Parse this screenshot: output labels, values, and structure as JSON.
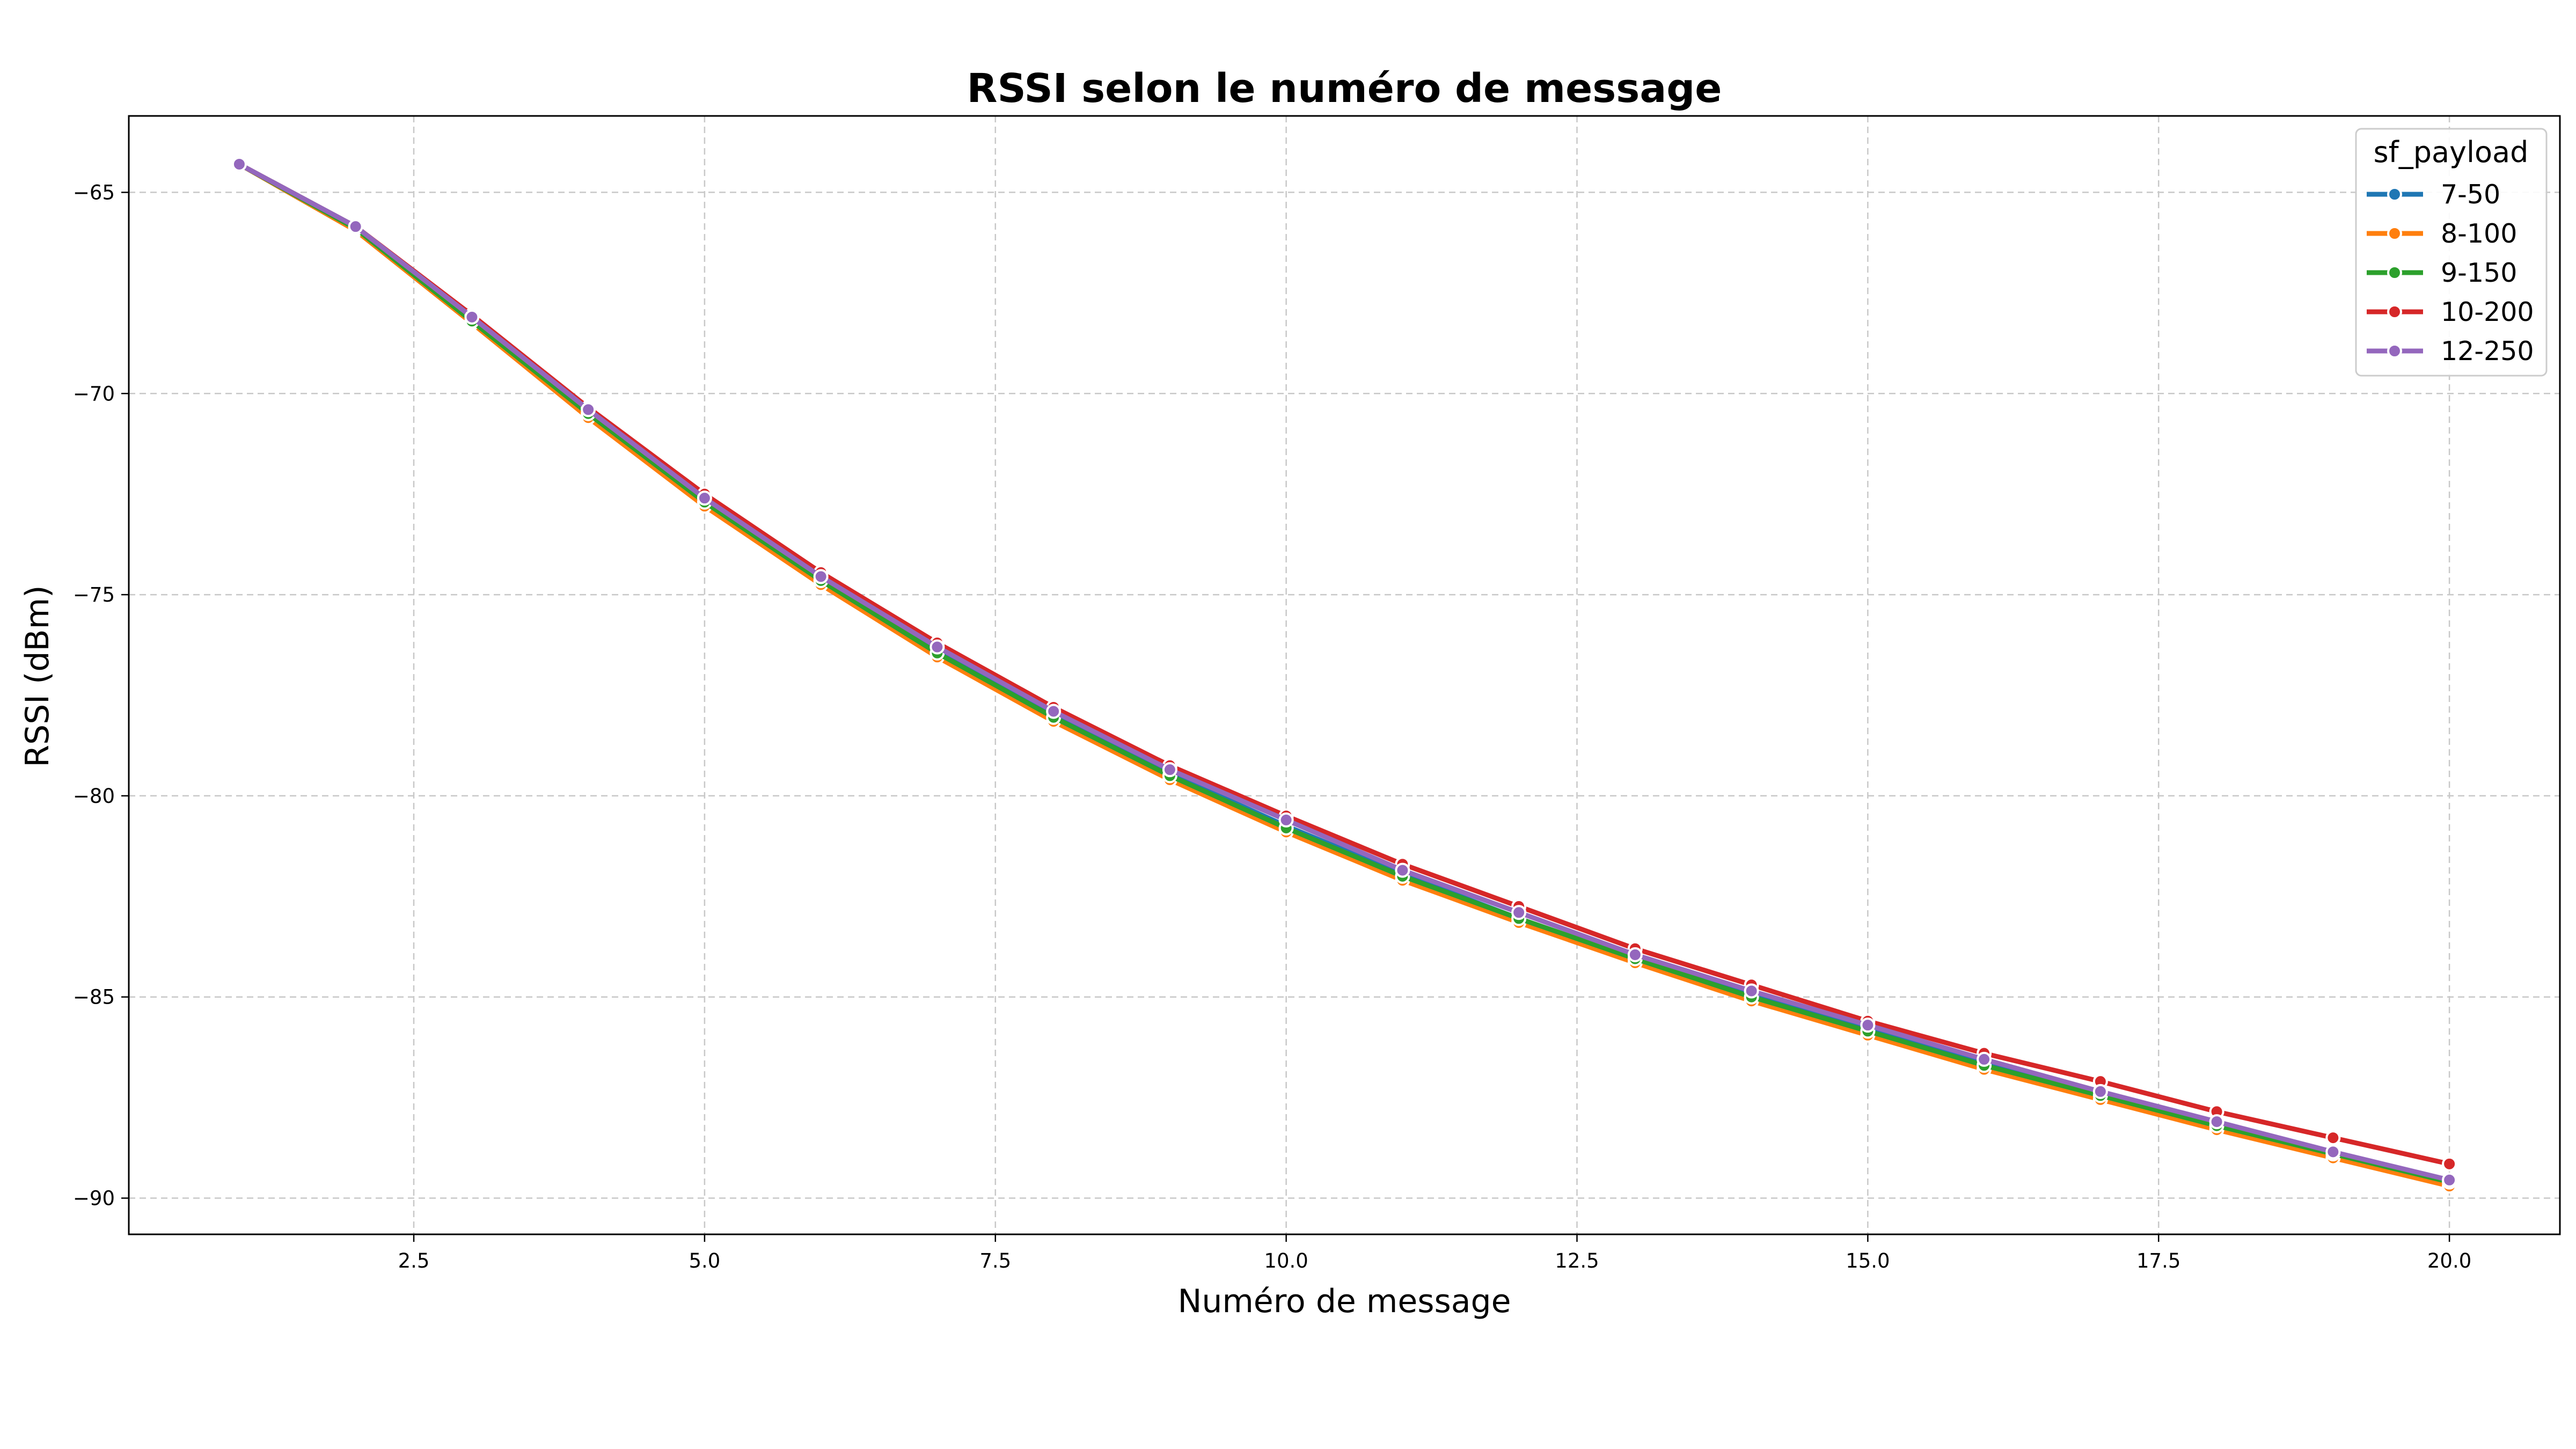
{
  "chart_data": {
    "type": "line",
    "title": "RSSI selon le numéro de message",
    "xlabel": "Numéro de message",
    "ylabel": "RSSI (dBm)",
    "xlim": [
      0.05,
      20.95
    ],
    "ylim": [
      -90.9,
      -63.1
    ],
    "xticks": [
      2.5,
      5.0,
      7.5,
      10.0,
      12.5,
      15.0,
      17.5,
      20.0
    ],
    "xtick_labels": [
      "2.5",
      "5.0",
      "7.5",
      "10.0",
      "12.5",
      "15.0",
      "17.5",
      "20.0"
    ],
    "yticks": [
      -65,
      -70,
      -75,
      -80,
      -85,
      -90
    ],
    "ytick_labels": [
      "−65",
      "−70",
      "−75",
      "−80",
      "−85",
      "−90"
    ],
    "grid": true,
    "legend_title": "sf_payload",
    "legend_position": "top-right",
    "x": [
      1,
      2,
      3,
      4,
      5,
      6,
      7,
      8,
      9,
      10,
      11,
      12,
      13,
      14,
      15,
      16,
      17,
      18,
      19,
      20
    ],
    "series": [
      {
        "name": "7-50",
        "color": "#1f77b4",
        "values": [
          -64.3,
          -65.85,
          -68.15,
          -70.45,
          -72.65,
          -74.6,
          -76.35,
          -78.0,
          -79.45,
          -80.75,
          -81.95,
          -83.05,
          -84.05,
          -84.95,
          -85.8,
          -86.65,
          -87.45,
          -88.2,
          -88.9,
          -89.55
        ]
      },
      {
        "name": "8-100",
        "color": "#ff7f0e",
        "values": [
          -64.3,
          -65.95,
          -68.25,
          -70.6,
          -72.8,
          -74.75,
          -76.55,
          -78.15,
          -79.6,
          -80.9,
          -82.1,
          -83.15,
          -84.15,
          -85.1,
          -85.95,
          -86.8,
          -87.55,
          -88.3,
          -89.0,
          -89.7
        ]
      },
      {
        "name": "9-150",
        "color": "#2ca02c",
        "values": [
          -64.3,
          -65.9,
          -68.2,
          -70.5,
          -72.7,
          -74.65,
          -76.45,
          -78.05,
          -79.5,
          -80.8,
          -82.0,
          -83.05,
          -84.05,
          -85.0,
          -85.85,
          -86.7,
          -87.45,
          -88.2,
          -88.9,
          -89.6
        ]
      },
      {
        "name": "10-200",
        "color": "#d62728",
        "values": [
          -64.3,
          -65.85,
          -68.05,
          -70.35,
          -72.5,
          -74.45,
          -76.2,
          -77.8,
          -79.25,
          -80.5,
          -81.7,
          -82.75,
          -83.8,
          -84.7,
          -85.6,
          -86.4,
          -87.1,
          -87.85,
          -88.5,
          -89.15
        ]
      },
      {
        "name": "12-250",
        "color": "#9467bd",
        "values": [
          -64.3,
          -65.85,
          -68.1,
          -70.4,
          -72.6,
          -74.55,
          -76.3,
          -77.9,
          -79.35,
          -80.6,
          -81.85,
          -82.9,
          -83.95,
          -84.85,
          -85.7,
          -86.55,
          -87.35,
          -88.1,
          -88.85,
          -89.55
        ]
      }
    ]
  }
}
